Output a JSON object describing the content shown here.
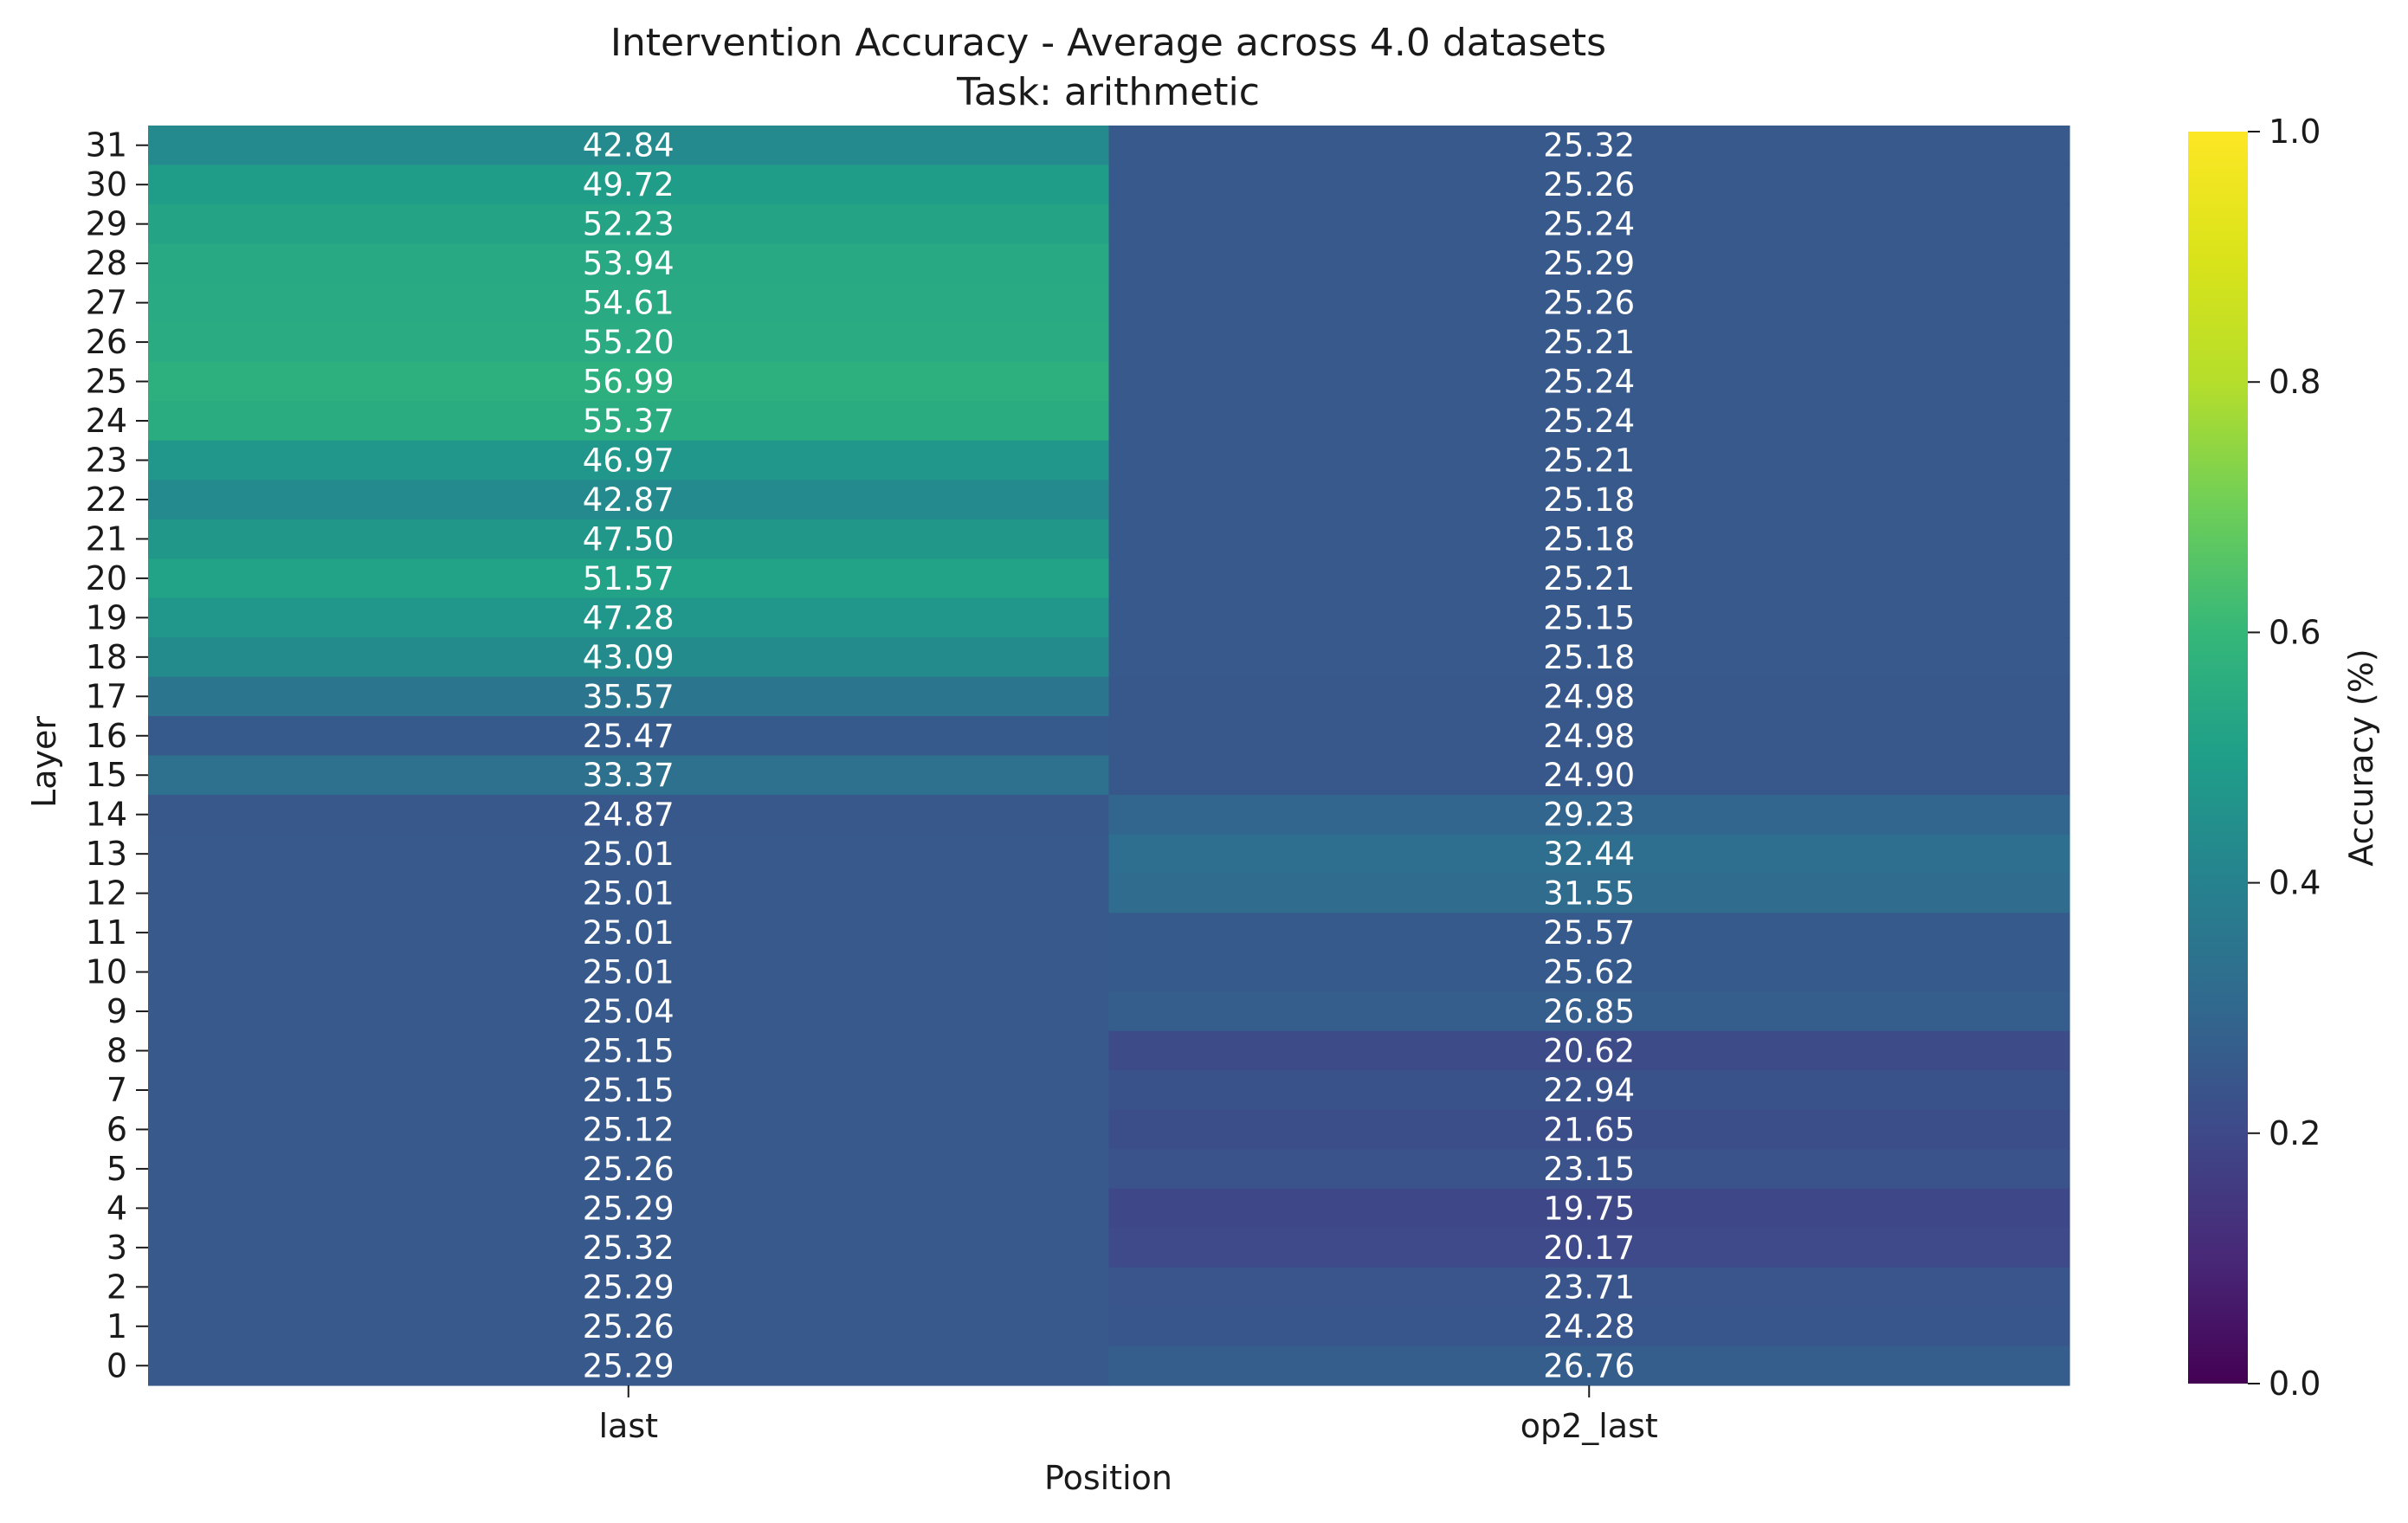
{
  "chart_data": {
    "type": "heatmap",
    "title": "Intervention Accuracy - Average across 4.0 datasets",
    "subtitle": "Task: arithmetic",
    "xlabel": "Position",
    "ylabel": "Layer",
    "columns": [
      "last",
      "op2_last"
    ],
    "rows": [
      "31",
      "30",
      "29",
      "28",
      "27",
      "26",
      "25",
      "24",
      "23",
      "22",
      "21",
      "20",
      "19",
      "18",
      "17",
      "16",
      "15",
      "14",
      "13",
      "12",
      "11",
      "10",
      "9",
      "8",
      "7",
      "6",
      "5",
      "4",
      "3",
      "2",
      "1",
      "0"
    ],
    "values": [
      [
        42.84,
        25.32
      ],
      [
        49.72,
        25.26
      ],
      [
        52.23,
        25.24
      ],
      [
        53.94,
        25.29
      ],
      [
        54.61,
        25.26
      ],
      [
        55.2,
        25.21
      ],
      [
        56.99,
        25.24
      ],
      [
        55.37,
        25.24
      ],
      [
        46.97,
        25.21
      ],
      [
        42.87,
        25.18
      ],
      [
        47.5,
        25.18
      ],
      [
        51.57,
        25.21
      ],
      [
        47.28,
        25.15
      ],
      [
        43.09,
        25.18
      ],
      [
        35.57,
        24.98
      ],
      [
        25.47,
        24.98
      ],
      [
        33.37,
        24.9
      ],
      [
        24.87,
        29.23
      ],
      [
        25.01,
        32.44
      ],
      [
        25.01,
        31.55
      ],
      [
        25.01,
        25.57
      ],
      [
        25.01,
        25.62
      ],
      [
        25.04,
        26.85
      ],
      [
        25.15,
        20.62
      ],
      [
        25.15,
        22.94
      ],
      [
        25.12,
        21.65
      ],
      [
        25.26,
        23.15
      ],
      [
        25.29,
        19.75
      ],
      [
        25.32,
        20.17
      ],
      [
        25.29,
        23.71
      ],
      [
        25.26,
        24.28
      ],
      [
        25.29,
        26.76
      ]
    ],
    "colormap": "viridis",
    "color_range": [
      0.0,
      1.0
    ],
    "colorbar": {
      "label": "Accuracy (%)",
      "ticks": [
        "0.0",
        "0.2",
        "0.4",
        "0.6",
        "0.8",
        "1.0"
      ]
    },
    "label_color": "#ffffff"
  }
}
